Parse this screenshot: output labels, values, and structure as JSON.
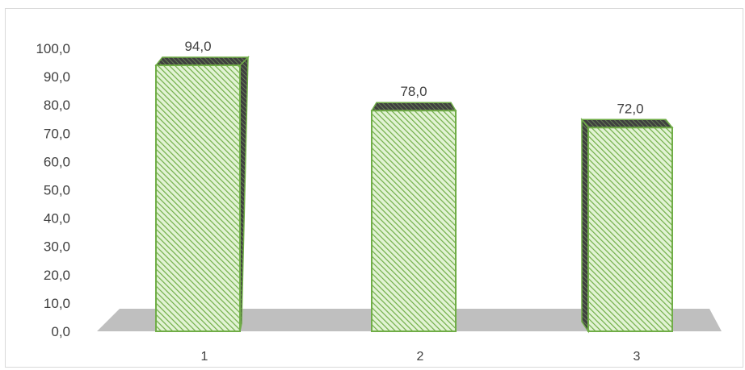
{
  "chart_data": {
    "type": "bar",
    "categories": [
      "1",
      "2",
      "3"
    ],
    "values": [
      94.0,
      78.0,
      72.0
    ],
    "value_labels": [
      "94,0",
      "78,0",
      "72,0"
    ],
    "y_ticks": [
      "0,0",
      "10,0",
      "20,0",
      "30,0",
      "40,0",
      "50,0",
      "60,0",
      "70,0",
      "80,0",
      "90,0",
      "100,0"
    ],
    "ylim": [
      0,
      100
    ],
    "title": "",
    "xlabel": "",
    "ylabel": "",
    "grid": false,
    "legend": "none",
    "style": "3d-column",
    "colors": {
      "bar_fill": "#e2f3d4",
      "bar_hatch": "#70ad47",
      "bar_edge": "#70ad47",
      "bar_side": "#4a4a4a",
      "floor": "#bfbfbf",
      "text": "#404040",
      "frame": "#d9d9d9"
    }
  }
}
